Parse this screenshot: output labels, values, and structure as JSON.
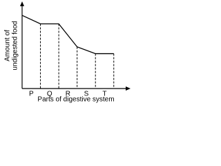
{
  "chart_data": {
    "type": "line",
    "x_label": "Parts of digestive system",
    "y_label": [
      "Amount of",
      "undigested food"
    ],
    "categories": [
      "P",
      "Q",
      "R",
      "S",
      "T"
    ],
    "x": [
      0,
      1,
      2,
      3,
      4,
      5
    ],
    "xlim": [
      0,
      5.8
    ],
    "ylim": [
      0,
      100
    ],
    "series": [
      {
        "color": "#000000",
        "values": [
          86,
          76,
          76,
          49,
          41,
          41
        ]
      }
    ]
  }
}
